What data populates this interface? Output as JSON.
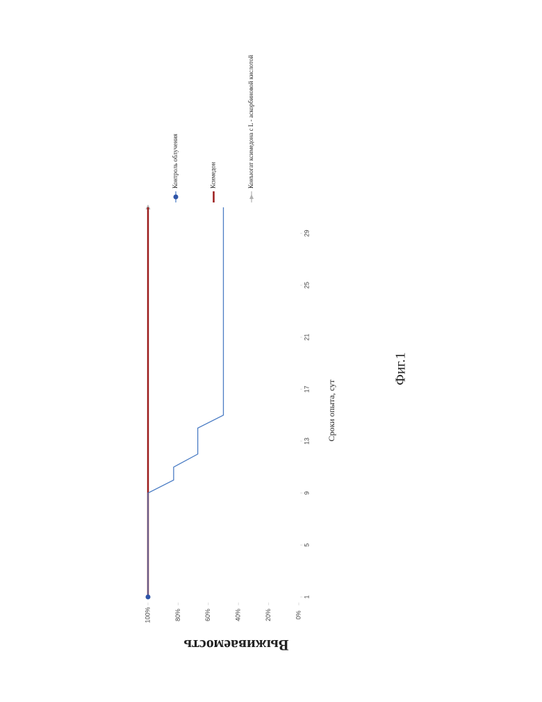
{
  "caption": "Фиг.1",
  "chart_data": {
    "type": "line",
    "ylabel": "Выживаемость",
    "xlabel": "Сроки опыта, сут",
    "x": [
      1,
      2,
      3,
      4,
      5,
      6,
      7,
      8,
      9,
      10,
      11,
      12,
      13,
      14,
      15,
      16,
      17,
      18,
      19,
      20,
      21,
      22,
      23,
      24,
      25,
      26,
      27,
      28,
      29,
      30,
      31
    ],
    "xlim": [
      1,
      31
    ],
    "xticks": [
      1,
      5,
      9,
      13,
      17,
      21,
      25,
      29
    ],
    "ylim": [
      0,
      100
    ],
    "yticks": [
      {
        "value": 0,
        "label": "0%"
      },
      {
        "value": 20,
        "label": "20%"
      },
      {
        "value": 40,
        "label": "40%"
      },
      {
        "value": 60,
        "label": "60%"
      },
      {
        "value": 80,
        "label": "80%"
      },
      {
        "value": 100,
        "label": "100%"
      }
    ],
    "series": [
      {
        "name": "Контроль облучения",
        "color": "#4a7cc4",
        "marker": "circle",
        "values": [
          100,
          100,
          100,
          100,
          100,
          100,
          100,
          100,
          100,
          83,
          83,
          67,
          67,
          67,
          50,
          50,
          50,
          50,
          50,
          50,
          50,
          50,
          50,
          50,
          50,
          50,
          50,
          50,
          50,
          50,
          50
        ]
      },
      {
        "name": "Ксимедон",
        "color": "#9b1b1b",
        "marker": "line",
        "values": [
          100,
          100,
          100,
          100,
          100,
          100,
          100,
          100,
          100,
          100,
          100,
          100,
          100,
          100,
          100,
          100,
          100,
          100,
          100,
          100,
          100,
          100,
          100,
          100,
          100,
          100,
          100,
          100,
          100,
          100,
          100
        ]
      },
      {
        "name": "Конъюгат ксимедона с L - аскорбиновой кислотой",
        "color": "#b0b0b0",
        "marker": "triangle",
        "values": [
          100,
          100,
          100,
          100,
          100,
          100,
          100,
          100,
          100,
          100,
          100,
          100,
          100,
          100,
          100,
          100,
          100,
          100,
          100,
          100,
          100,
          100,
          100,
          100,
          100,
          100,
          100,
          100,
          100,
          100,
          100
        ]
      }
    ]
  }
}
